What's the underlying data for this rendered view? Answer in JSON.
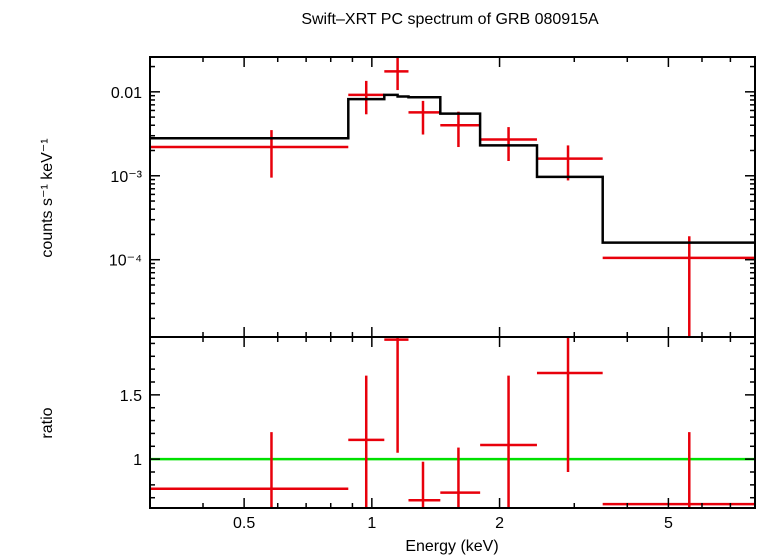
{
  "chart_data": {
    "type": "line",
    "title": "Swift–XRT PC spectrum of GRB 080915A",
    "xlabel": "Energy (keV)",
    "xscale": "log",
    "xlim": [
      0.3,
      8.0
    ],
    "xticks": [
      {
        "value": 0.5,
        "label": "0.5"
      },
      {
        "value": 1,
        "label": "1"
      },
      {
        "value": 2,
        "label": "2"
      },
      {
        "value": 5,
        "label": "5"
      }
    ],
    "panels": [
      {
        "name": "spectrum",
        "ylabel": "counts s⁻¹ keV⁻¹",
        "yscale": "log",
        "ylim": [
          1.2e-05,
          0.026
        ],
        "yticks": [
          {
            "value": 0.01,
            "label": "0.01"
          },
          {
            "value": 0.001,
            "label": "10⁻³"
          },
          {
            "value": 0.0001,
            "label": "10⁻⁴"
          }
        ],
        "series": [
          {
            "type": "errorbar",
            "color": "#e8000b",
            "points": [
              {
                "x": 0.58,
                "xlo": 0.3,
                "xhi": 0.88,
                "y": 0.0022,
                "ylo": 0.00095,
                "yhi": 0.0035
              },
              {
                "x": 0.97,
                "xlo": 0.88,
                "xhi": 1.07,
                "y": 0.0092,
                "ylo": 0.0054,
                "yhi": 0.0135
              },
              {
                "x": 1.15,
                "xlo": 1.07,
                "xhi": 1.22,
                "y": 0.0175,
                "ylo": 0.0105,
                "yhi": 0.026
              },
              {
                "x": 1.32,
                "xlo": 1.22,
                "xhi": 1.45,
                "y": 0.0057,
                "ylo": 0.0031,
                "yhi": 0.0078
              },
              {
                "x": 1.6,
                "xlo": 1.45,
                "xhi": 1.8,
                "y": 0.004,
                "ylo": 0.0022,
                "yhi": 0.0058
              },
              {
                "x": 2.1,
                "xlo": 1.8,
                "xhi": 2.45,
                "y": 0.0027,
                "ylo": 0.0015,
                "yhi": 0.0038
              },
              {
                "x": 2.9,
                "xlo": 2.45,
                "xhi": 3.5,
                "y": 0.0016,
                "ylo": 0.00088,
                "yhi": 0.0023
              },
              {
                "x": 5.6,
                "xlo": 3.5,
                "xhi": 8.0,
                "y": 0.000105,
                "ylo": 1.2e-05,
                "yhi": 0.00019
              }
            ]
          },
          {
            "type": "step",
            "color": "#000000",
            "bins": [
              {
                "xlo": 0.3,
                "xhi": 0.88,
                "y": 0.0028
              },
              {
                "xlo": 0.88,
                "xhi": 1.07,
                "y": 0.0082
              },
              {
                "xlo": 1.07,
                "xhi": 1.15,
                "y": 0.0092
              },
              {
                "xlo": 1.15,
                "xhi": 1.22,
                "y": 0.0088
              },
              {
                "xlo": 1.22,
                "xhi": 1.45,
                "y": 0.0086
              },
              {
                "xlo": 1.45,
                "xhi": 1.8,
                "y": 0.0055
              },
              {
                "xlo": 1.8,
                "xhi": 2.45,
                "y": 0.0023
              },
              {
                "xlo": 2.45,
                "xhi": 3.5,
                "y": 0.00097
              },
              {
                "xlo": 3.5,
                "xhi": 8.0,
                "y": 0.00016
              }
            ]
          }
        ]
      },
      {
        "name": "ratio",
        "ylabel": "ratio",
        "yscale": "linear",
        "ylim": [
          0.62,
          1.95
        ],
        "yticks": [
          {
            "value": 1,
            "label": "1"
          },
          {
            "value": 1.5,
            "label": "1.5"
          }
        ],
        "reference_line": {
          "y": 1,
          "color": "#00e000"
        },
        "series": [
          {
            "type": "errorbar",
            "color": "#e8000b",
            "points": [
              {
                "x": 0.58,
                "xlo": 0.3,
                "xhi": 0.88,
                "y": 0.77,
                "ylo": 0.62,
                "yhi": 1.21
              },
              {
                "x": 0.97,
                "xlo": 0.88,
                "xhi": 1.07,
                "y": 1.15,
                "ylo": 0.62,
                "yhi": 1.65
              },
              {
                "x": 1.15,
                "xlo": 1.07,
                "xhi": 1.22,
                "y": 1.93,
                "ylo": 1.05,
                "yhi": 1.95
              },
              {
                "x": 1.32,
                "xlo": 1.22,
                "xhi": 1.45,
                "y": 0.68,
                "ylo": 0.62,
                "yhi": 0.98
              },
              {
                "x": 1.6,
                "xlo": 1.45,
                "xhi": 1.8,
                "y": 0.74,
                "ylo": 0.62,
                "yhi": 1.09
              },
              {
                "x": 2.1,
                "xlo": 1.8,
                "xhi": 2.45,
                "y": 1.11,
                "ylo": 0.62,
                "yhi": 1.65
              },
              {
                "x": 2.9,
                "xlo": 2.45,
                "xhi": 3.5,
                "y": 1.67,
                "ylo": 0.9,
                "yhi": 1.95
              },
              {
                "x": 5.6,
                "xlo": 3.5,
                "xhi": 8.0,
                "y": 0.65,
                "ylo": 0.62,
                "yhi": 1.21
              }
            ]
          }
        ]
      }
    ]
  }
}
